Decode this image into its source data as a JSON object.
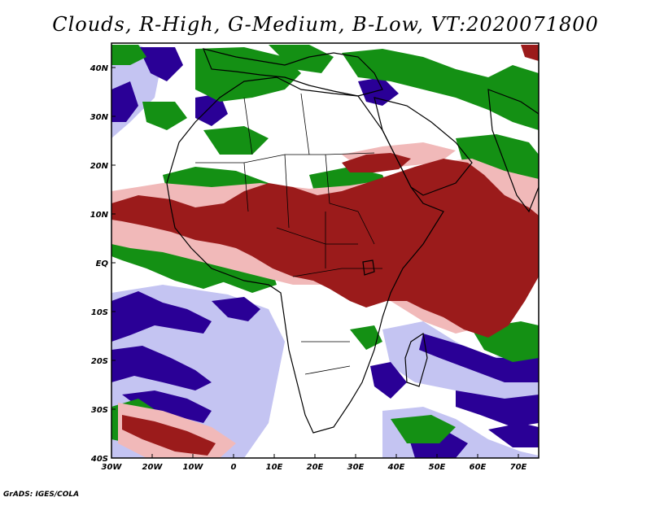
{
  "title": "Clouds, R-High, G-Medium, B-Low, VT:2020071800",
  "credit": "GrADS: IGES/COLA",
  "colors": {
    "high_cloud": "#9b1b1b",
    "high_cloud_thin": "#f1b9b9",
    "medium_cloud": "#149014",
    "low_cloud": "#2a0096",
    "low_cloud_thin": "#c4c4f2",
    "clear": "#ffffff",
    "coastline": "#000000"
  },
  "map": {
    "projection": "lat-lon",
    "lon_range": [
      -30,
      75
    ],
    "lat_range": [
      -40,
      45
    ],
    "lon_ticks": [
      "30W",
      "20W",
      "10W",
      "0",
      "10E",
      "20E",
      "30E",
      "40E",
      "50E",
      "60E",
      "70E"
    ],
    "lat_ticks": [
      "40S",
      "30S",
      "20S",
      "10S",
      "EQ",
      "10N",
      "20N",
      "30N",
      "40N"
    ]
  }
}
